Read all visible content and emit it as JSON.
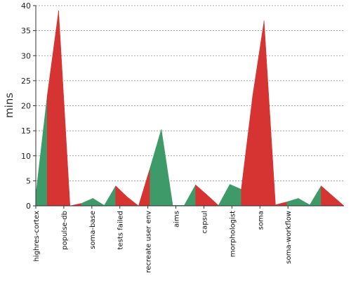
{
  "chart_data": {
    "type": "area",
    "ylabel": "mins",
    "xlabel": "",
    "title": "",
    "ylim": [
      0,
      40
    ],
    "yticks": [
      0,
      5,
      10,
      15,
      20,
      25,
      30,
      35,
      40
    ],
    "grid": true,
    "categories": [
      "highres-cortex",
      "populse-db",
      "soma-base",
      "tests failed",
      "recreate user env",
      "aims",
      "capsul",
      "morphologist",
      "soma",
      "soma-workflow"
    ],
    "colors": {
      "success": "#3f9a6a",
      "failure": "#d63333",
      "grid": "#888888",
      "axis": "#333333"
    },
    "points": [
      {
        "x": 0,
        "value": 2.2,
        "status": "success"
      },
      {
        "x": 1,
        "value": 22,
        "status": "success"
      },
      {
        "x": 2,
        "value": 39,
        "status": "failure"
      },
      {
        "x": 3,
        "value": 0,
        "status": "failure"
      },
      {
        "x": 4,
        "value": 0.5,
        "status": "failure"
      },
      {
        "x": 5,
        "value": 1.5,
        "status": "success"
      },
      {
        "x": 6,
        "value": 0.1,
        "status": "success"
      },
      {
        "x": 7,
        "value": 4,
        "status": "success"
      },
      {
        "x": 8,
        "value": 1.8,
        "status": "failure"
      },
      {
        "x": 9,
        "value": 0,
        "status": "failure"
      },
      {
        "x": 10,
        "value": 7.5,
        "status": "failure"
      },
      {
        "x": 11,
        "value": 15.3,
        "status": "success"
      },
      {
        "x": 12,
        "value": 0.1,
        "status": "success"
      },
      {
        "x": 13,
        "value": 0.1,
        "status": "success"
      },
      {
        "x": 14,
        "value": 4.2,
        "status": "success"
      },
      {
        "x": 15,
        "value": 2.2,
        "status": "failure"
      },
      {
        "x": 16,
        "value": 0.1,
        "status": "failure"
      },
      {
        "x": 17,
        "value": 4.3,
        "status": "success"
      },
      {
        "x": 18,
        "value": 3.3,
        "status": "success"
      },
      {
        "x": 19,
        "value": 22,
        "status": "failure"
      },
      {
        "x": 20,
        "value": 37,
        "status": "failure"
      },
      {
        "x": 21,
        "value": 0.2,
        "status": "failure"
      },
      {
        "x": 22,
        "value": 0.8,
        "status": "failure"
      },
      {
        "x": 23,
        "value": 1.5,
        "status": "success"
      },
      {
        "x": 24,
        "value": 0.2,
        "status": "success"
      },
      {
        "x": 25,
        "value": 4,
        "status": "success"
      },
      {
        "x": 26,
        "value": 2,
        "status": "failure"
      },
      {
        "x": 27,
        "value": 0,
        "status": "failure"
      }
    ],
    "category_positions": [
      0,
      4,
      8,
      12,
      16,
      20,
      24,
      28,
      32,
      36
    ]
  }
}
